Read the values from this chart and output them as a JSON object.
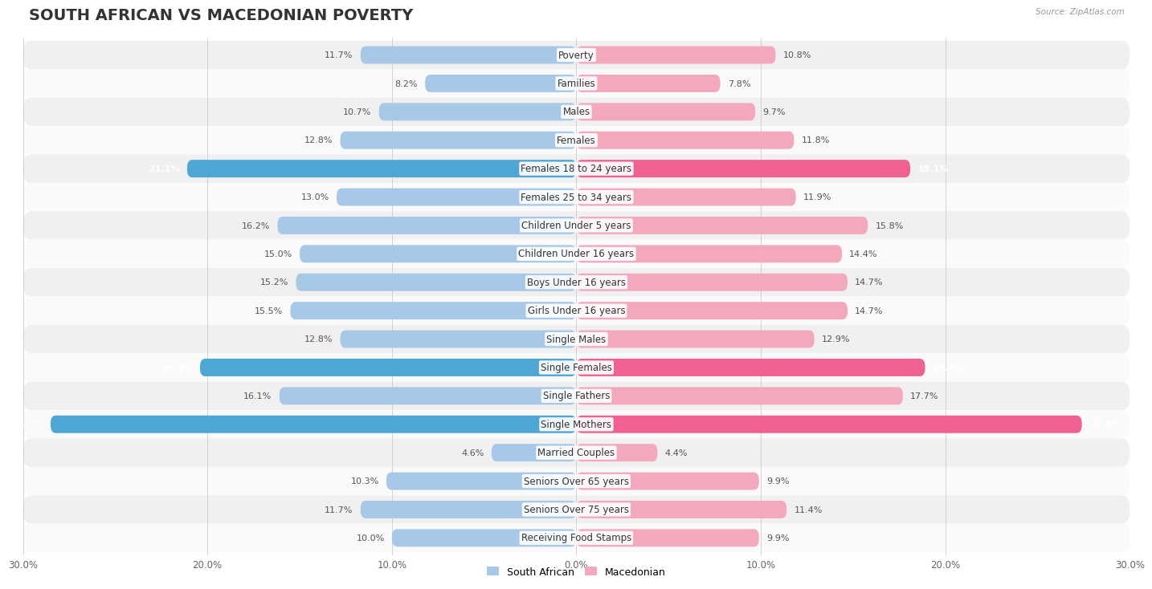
{
  "title": "SOUTH AFRICAN VS MACEDONIAN POVERTY",
  "source": "Source: ZipAtlas.com",
  "categories": [
    "Poverty",
    "Families",
    "Males",
    "Females",
    "Females 18 to 24 years",
    "Females 25 to 34 years",
    "Children Under 5 years",
    "Children Under 16 years",
    "Boys Under 16 years",
    "Girls Under 16 years",
    "Single Males",
    "Single Females",
    "Single Fathers",
    "Single Mothers",
    "Married Couples",
    "Seniors Over 65 years",
    "Seniors Over 75 years",
    "Receiving Food Stamps"
  ],
  "south_african": [
    11.7,
    8.2,
    10.7,
    12.8,
    21.1,
    13.0,
    16.2,
    15.0,
    15.2,
    15.5,
    12.8,
    20.4,
    16.1,
    28.5,
    4.6,
    10.3,
    11.7,
    10.0
  ],
  "macedonian": [
    10.8,
    7.8,
    9.7,
    11.8,
    18.1,
    11.9,
    15.8,
    14.4,
    14.7,
    14.7,
    12.9,
    18.9,
    17.7,
    27.4,
    4.4,
    9.9,
    11.4,
    9.9
  ],
  "sa_color": "#a8c8e8",
  "mac_color": "#f4a8bc",
  "sa_highlight_color": "#4da6d4",
  "mac_highlight_color": "#f06090",
  "highlight_rows": [
    4,
    11,
    13
  ],
  "bg_color": "#ffffff",
  "row_even_color": "#f0f0f0",
  "row_odd_color": "#fafafa",
  "x_max": 30.0,
  "legend_sa": "South African",
  "legend_mac": "Macedonian",
  "title_fontsize": 14,
  "label_fontsize": 8.5,
  "value_fontsize": 8,
  "tick_fontsize": 8.5
}
